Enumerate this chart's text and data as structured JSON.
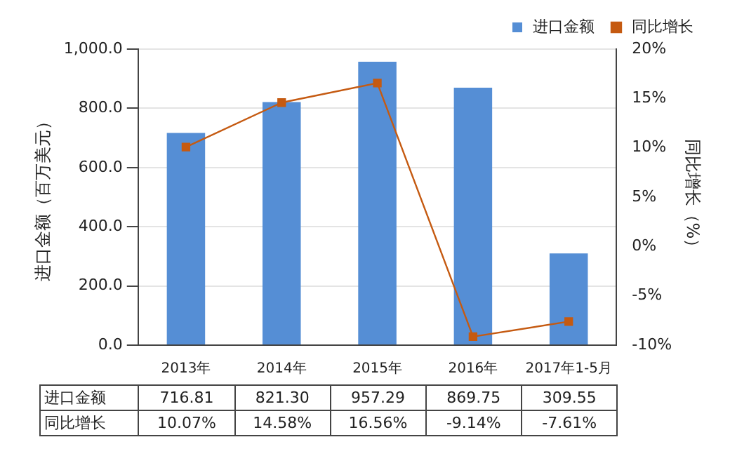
{
  "chart_data": {
    "type": "bar",
    "categories": [
      "2013年",
      "2014年",
      "2015年",
      "2016年",
      "2017年1-5月"
    ],
    "series": [
      {
        "name": "进口金额",
        "color": "#558ed5",
        "values": [
          716.81,
          821.3,
          957.29,
          869.75,
          309.55
        ],
        "value_labels": [
          "716.81",
          "821.30",
          "957.29",
          "869.75",
          "309.55"
        ]
      },
      {
        "name": "同比增长",
        "type": "line",
        "axis": "y2",
        "color": "#c55a11",
        "marker": "square",
        "values": [
          10.07,
          14.58,
          16.56,
          -9.14,
          -7.61
        ],
        "value_labels": [
          "10.07%",
          "14.58%",
          "16.56%",
          "-9.14%",
          "-7.61%"
        ]
      }
    ],
    "ylabel": "进口金额（百万美元）",
    "y2label": "同比增长（%）",
    "ylim": [
      0,
      1000
    ],
    "yticks": [
      {
        "value": 0,
        "label": "0.0"
      },
      {
        "value": 200,
        "label": "200.0"
      },
      {
        "value": 400,
        "label": "400.0"
      },
      {
        "value": 600,
        "label": "600.0"
      },
      {
        "value": 800,
        "label": "800.0"
      },
      {
        "value": 1000,
        "label": "1,000.0"
      }
    ],
    "y2lim": [
      -10,
      20
    ],
    "y2ticks": [
      {
        "value": -10,
        "label": "-10%"
      },
      {
        "value": -5,
        "label": "-5%"
      },
      {
        "value": 0,
        "label": "0%"
      },
      {
        "value": 5,
        "label": "5%"
      },
      {
        "value": 10,
        "label": "10%"
      },
      {
        "value": 15,
        "label": "15%"
      },
      {
        "value": 20,
        "label": "20%"
      }
    ],
    "grid": "y",
    "legend": "top right"
  }
}
